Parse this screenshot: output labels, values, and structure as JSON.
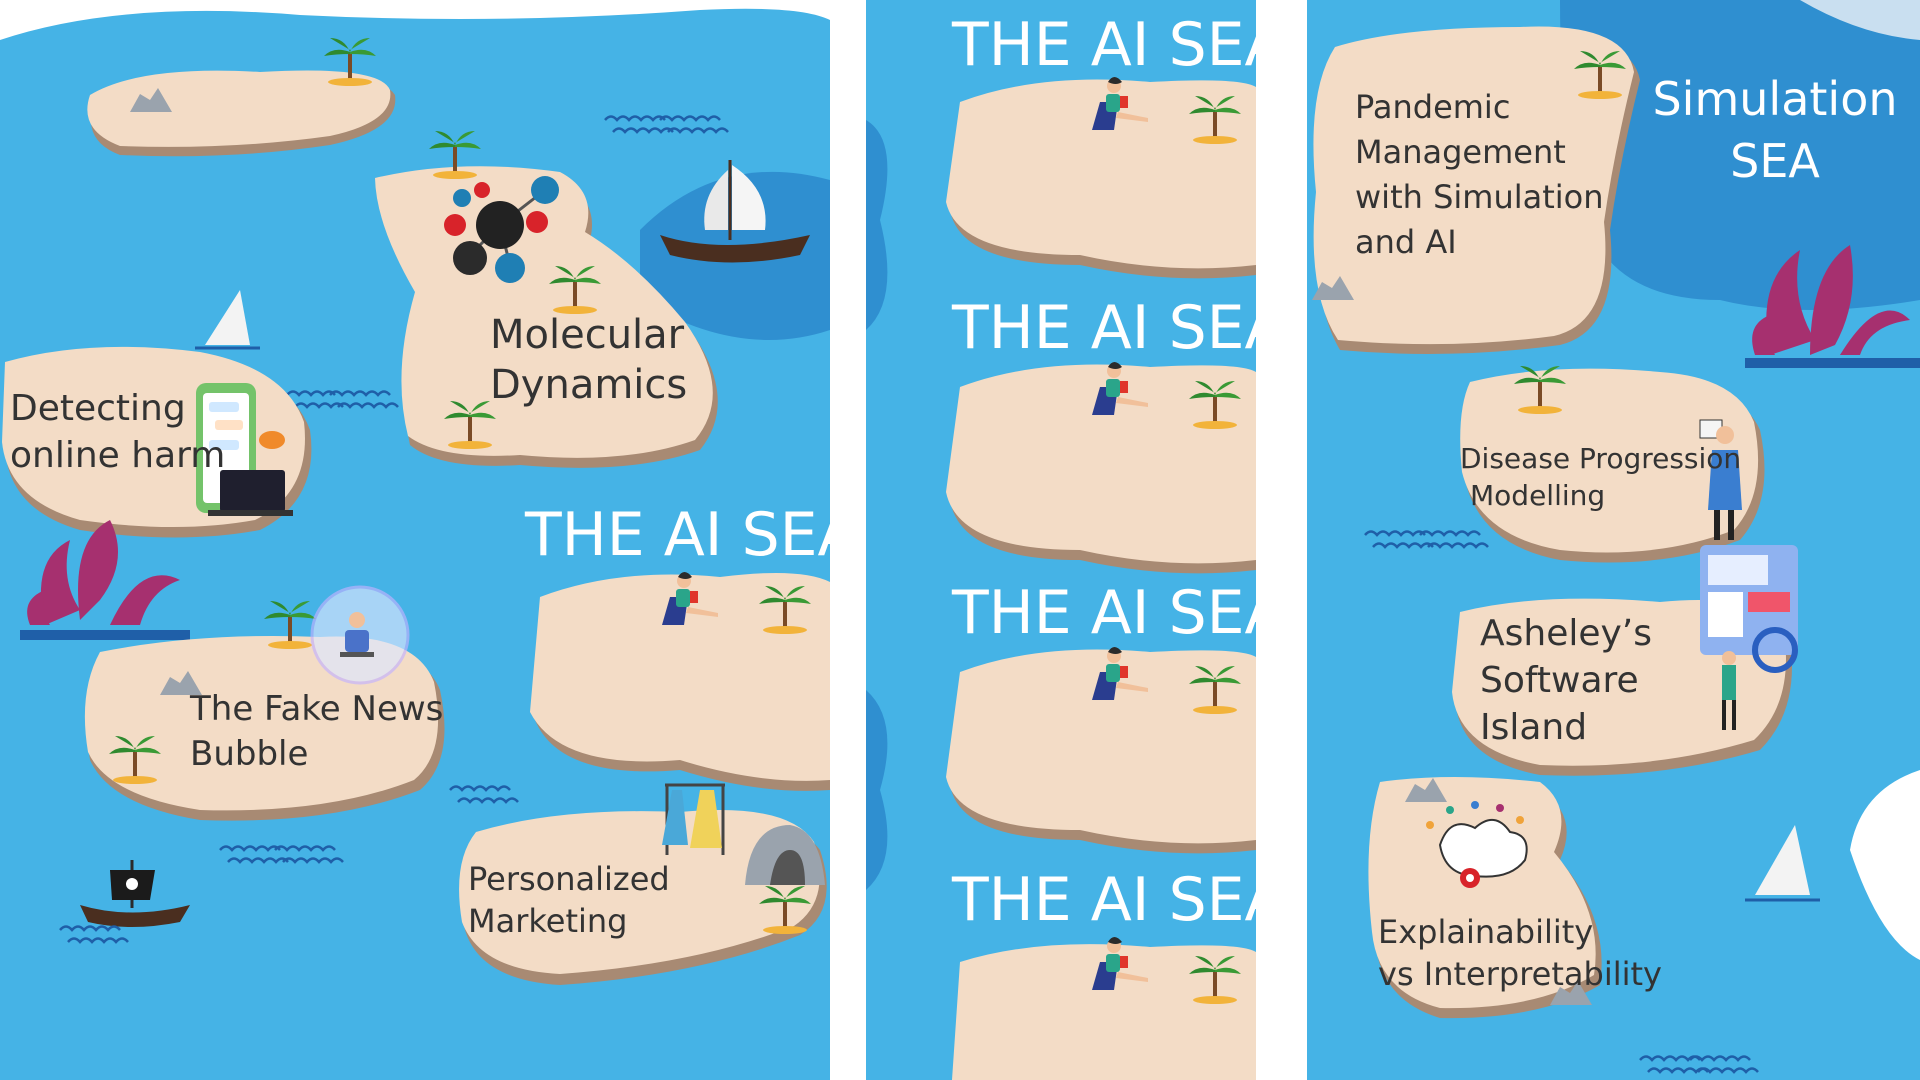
{
  "panels": {
    "left": {
      "sea_title": "THE AI SEA",
      "islands": {
        "molecular": {
          "line1": "Molecular",
          "line2": "Dynamics"
        },
        "harm": {
          "line1": "Detecting",
          "line2": "online harm"
        },
        "fake_news": {
          "line1": "The Fake News",
          "line2": "Bubble"
        },
        "marketing": {
          "line1": "Personalized",
          "line2": "Marketing"
        }
      }
    },
    "middle": {
      "sea_titles": [
        "THE AI SEA",
        "THE AI SEA",
        "THE AI SEA",
        "THE AI SEA"
      ]
    },
    "right": {
      "sea_title": {
        "line1": "Simulation",
        "line2": "SEA"
      },
      "islands": {
        "pandemic": {
          "line1": "Pandemic",
          "line2": "Management",
          "line3": "with Simulation",
          "line4": "and AI"
        },
        "disease": {
          "line1": "Disease Progression",
          "line2": "Modelling"
        },
        "software": {
          "line1": "Asheley’s",
          "line2": "Software",
          "line3": "Island"
        },
        "explain": {
          "line1": "Explainability",
          "line2": "vs Interpretability"
        }
      }
    }
  },
  "colors": {
    "sea": "#45b3e6",
    "deep_sea": "#2f8fd0",
    "sand": "#f3dcc6",
    "shore": "#a88a73",
    "label": "#333333",
    "kraken": "#a6306f"
  }
}
